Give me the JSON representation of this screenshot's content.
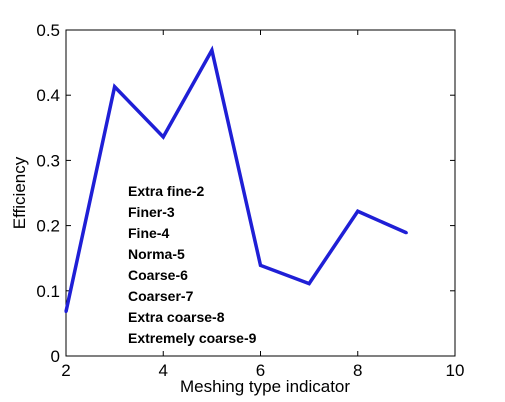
{
  "chart_data": {
    "type": "line",
    "title": "",
    "xlabel": "Meshing type indicator",
    "ylabel": "Efficiency",
    "xlim": [
      2,
      10
    ],
    "ylim": [
      0,
      0.5
    ],
    "xticks": [
      "2",
      "4",
      "6",
      "8",
      "10"
    ],
    "yticks": [
      "0",
      "0.1",
      "0.2",
      "0.3",
      "0.4",
      "0.5"
    ],
    "grid": false,
    "series": [
      {
        "color": "#1f1fd6",
        "x": [
          2,
          3,
          4,
          5,
          6,
          7,
          8,
          9
        ],
        "y": [
          0.068,
          0.413,
          0.336,
          0.469,
          0.139,
          0.111,
          0.222,
          0.189
        ]
      }
    ],
    "annotations": [
      "Extra fine-2",
      "Finer-3",
      "Fine-4",
      "Norma-5",
      "Coarse-6",
      "Coarser-7",
      "Extra coarse-8",
      "Extremely coarse-9"
    ]
  }
}
